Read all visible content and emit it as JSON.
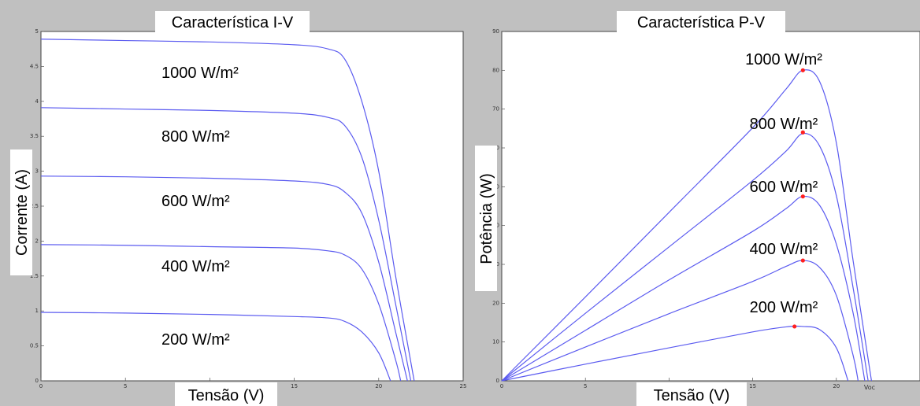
{
  "chart_data": [
    {
      "type": "line",
      "title": "Característica I-V",
      "xlabel": "Tensão (V)",
      "ylabel": "Corrente (A)",
      "xlim": [
        0,
        25
      ],
      "ylim": [
        0,
        5
      ],
      "xticks": [
        "0",
        "5",
        "10",
        "15",
        "20",
        "25"
      ],
      "yticks": [
        "0",
        "0.5",
        "1",
        "1.5",
        "2",
        "2.5",
        "3",
        "3.5",
        "4",
        "4.5",
        "5"
      ],
      "line_color": "#5b5bf0",
      "series": [
        {
          "name": "1000 W/m²",
          "x": [
            0,
            5,
            10,
            15,
            17,
            18,
            19,
            20,
            21,
            22.1
          ],
          "y": [
            4.89,
            4.87,
            4.85,
            4.81,
            4.75,
            4.6,
            4.0,
            3.0,
            1.5,
            0
          ]
        },
        {
          "name": "800 W/m²",
          "x": [
            0,
            5,
            10,
            15,
            17,
            18,
            19,
            20,
            21,
            21.9
          ],
          "y": [
            3.91,
            3.89,
            3.87,
            3.83,
            3.77,
            3.65,
            3.2,
            2.3,
            1.1,
            0
          ]
        },
        {
          "name": "600 W/m²",
          "x": [
            0,
            5,
            10,
            15,
            17,
            18,
            19,
            20,
            21,
            21.7
          ],
          "y": [
            2.93,
            2.92,
            2.9,
            2.86,
            2.81,
            2.7,
            2.4,
            1.7,
            0.7,
            0
          ]
        },
        {
          "name": "400 W/m²",
          "x": [
            0,
            5,
            10,
            15,
            17,
            18,
            19,
            20,
            21,
            21.3
          ],
          "y": [
            1.95,
            1.94,
            1.92,
            1.9,
            1.86,
            1.8,
            1.6,
            1.1,
            0.3,
            0
          ]
        },
        {
          "name": "200 W/m²",
          "x": [
            0,
            5,
            10,
            15,
            17,
            18,
            19,
            20,
            20.7
          ],
          "y": [
            0.98,
            0.97,
            0.95,
            0.92,
            0.9,
            0.85,
            0.7,
            0.4,
            0
          ]
        }
      ]
    },
    {
      "type": "line",
      "title": "Característica P-V",
      "xlabel": "Tensão (V)",
      "ylabel": "Potência (W)",
      "xlim": [
        0,
        25
      ],
      "ylim": [
        0,
        90
      ],
      "xticks": [
        "0",
        "5",
        "10",
        "15",
        "20"
      ],
      "yticks": [
        "0",
        "10",
        "20",
        "30",
        "40",
        "50",
        "60",
        "70",
        "80",
        "90"
      ],
      "annotation": "Voc",
      "line_color": "#5b5bf0",
      "mpp_color": "#ff2020",
      "series": [
        {
          "name": "1000 W/m²",
          "x": [
            0,
            5,
            10,
            15,
            17,
            18,
            19,
            20,
            21,
            22.1
          ],
          "y": [
            0,
            21.6,
            43.4,
            65.2,
            75.2,
            80.0,
            77.1,
            61.3,
            31.0,
            0
          ],
          "mpp": [
            18,
            80
          ]
        },
        {
          "name": "800 W/m²",
          "x": [
            0,
            5,
            10,
            15,
            17,
            18,
            19,
            20,
            21,
            21.9
          ],
          "y": [
            0,
            17.4,
            34.5,
            51.6,
            59.2,
            63.7,
            60.5,
            47.7,
            24.0,
            0
          ],
          "mpp": [
            18,
            64
          ]
        },
        {
          "name": "600 W/m²",
          "x": [
            0,
            5,
            10,
            15,
            17,
            18,
            19,
            20,
            21,
            21.7
          ],
          "y": [
            0,
            13.0,
            26.0,
            38.5,
            44.4,
            47.5,
            45.2,
            35.2,
            17.5,
            0
          ],
          "mpp": [
            18,
            47.5
          ]
        },
        {
          "name": "400 W/m²",
          "x": [
            0,
            5,
            10,
            15,
            17,
            18,
            19,
            20,
            21,
            21.3
          ],
          "y": [
            0,
            8.7,
            17.3,
            25.6,
            29.5,
            31.0,
            29.2,
            22.0,
            6.6,
            0
          ],
          "mpp": [
            18,
            31
          ]
        },
        {
          "name": "200 W/m²",
          "x": [
            0,
            5,
            10,
            15,
            17,
            18,
            19,
            20,
            20.7
          ],
          "y": [
            0,
            4.3,
            8.5,
            12.6,
            13.9,
            14.0,
            13.2,
            8.5,
            0
          ],
          "mpp": [
            17.5,
            14
          ]
        }
      ]
    }
  ]
}
